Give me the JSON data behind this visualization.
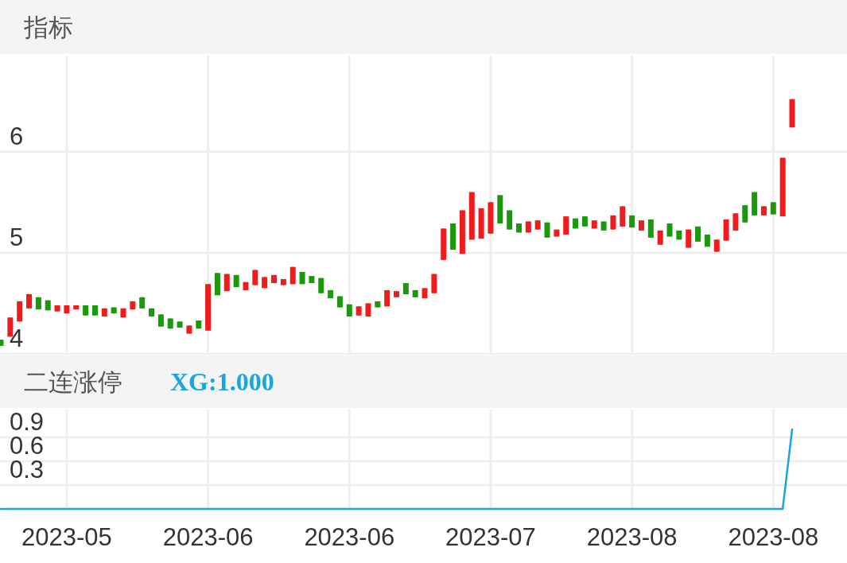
{
  "chart_data": [
    {
      "type": "candlestick",
      "title": "指标",
      "grid": true,
      "tick_labels": "y",
      "ylim": [
        4,
        6.95
      ],
      "yticks": [
        4,
        5,
        6
      ],
      "categories": [
        null,
        null,
        null,
        null,
        null,
        null,
        null,
        "2023-05",
        null,
        null,
        null,
        null,
        null,
        null,
        null,
        null,
        null,
        null,
        null,
        null,
        null,
        null,
        "2023-06",
        null,
        null,
        null,
        null,
        null,
        null,
        null,
        null,
        null,
        null,
        null,
        null,
        null,
        null,
        "2023-06",
        null,
        null,
        null,
        null,
        null,
        null,
        null,
        null,
        null,
        null,
        null,
        null,
        null,
        null,
        "2023-07",
        null,
        null,
        null,
        null,
        null,
        null,
        null,
        null,
        null,
        null,
        null,
        null,
        null,
        null,
        "2023-08",
        null,
        null,
        null,
        null,
        null,
        null,
        null,
        null,
        null,
        null,
        null,
        null,
        null,
        null,
        "2023-08",
        null,
        null
      ],
      "ohlc": [
        [
          4.14,
          4.14,
          4.08,
          4.08
        ],
        [
          4.17,
          4.36,
          4.17,
          4.36
        ],
        [
          4.32,
          4.52,
          4.32,
          4.52
        ],
        [
          4.45,
          4.59,
          4.45,
          4.59
        ],
        [
          4.56,
          4.56,
          4.44,
          4.44
        ],
        [
          4.53,
          4.53,
          4.43,
          4.43
        ],
        [
          4.42,
          4.48,
          4.42,
          4.48
        ],
        [
          4.4,
          4.48,
          4.4,
          4.48
        ],
        [
          4.44,
          4.48,
          4.44,
          4.48
        ],
        [
          4.48,
          4.48,
          4.38,
          4.38
        ],
        [
          4.48,
          4.48,
          4.38,
          4.38
        ],
        [
          4.37,
          4.45,
          4.37,
          4.45
        ],
        [
          4.46,
          4.46,
          4.4,
          4.4
        ],
        [
          4.36,
          4.45,
          4.36,
          4.45
        ],
        [
          4.44,
          4.52,
          4.44,
          4.52
        ],
        [
          4.56,
          4.56,
          4.45,
          4.45
        ],
        [
          4.45,
          4.45,
          4.37,
          4.37
        ],
        [
          4.39,
          4.39,
          4.27,
          4.27
        ],
        [
          4.35,
          4.35,
          4.25,
          4.25
        ],
        [
          4.32,
          4.32,
          4.26,
          4.26
        ],
        [
          4.2,
          4.28,
          4.2,
          4.28
        ],
        [
          4.33,
          4.33,
          4.25,
          4.25
        ],
        [
          4.23,
          4.69,
          4.23,
          4.69
        ],
        [
          4.8,
          4.8,
          4.58,
          4.58
        ],
        [
          4.62,
          4.79,
          4.62,
          4.79
        ],
        [
          4.78,
          4.78,
          4.66,
          4.66
        ],
        [
          4.63,
          4.71,
          4.63,
          4.71
        ],
        [
          4.68,
          4.83,
          4.68,
          4.83
        ],
        [
          4.65,
          4.76,
          4.65,
          4.76
        ],
        [
          4.7,
          4.78,
          4.7,
          4.78
        ],
        [
          4.68,
          4.74,
          4.68,
          4.74
        ],
        [
          4.69,
          4.86,
          4.69,
          4.86
        ],
        [
          4.81,
          4.81,
          4.69,
          4.69
        ],
        [
          4.77,
          4.77,
          4.7,
          4.7
        ],
        [
          4.75,
          4.75,
          4.6,
          4.6
        ],
        [
          4.63,
          4.63,
          4.55,
          4.55
        ],
        [
          4.57,
          4.57,
          4.46,
          4.46
        ],
        [
          4.49,
          4.49,
          4.37,
          4.37
        ],
        [
          4.38,
          4.47,
          4.38,
          4.47
        ],
        [
          4.37,
          4.5,
          4.37,
          4.5
        ],
        [
          4.52,
          4.52,
          4.46,
          4.46
        ],
        [
          4.47,
          4.63,
          4.47,
          4.63
        ],
        [
          4.56,
          4.62,
          4.56,
          4.62
        ],
        [
          4.7,
          4.7,
          4.59,
          4.59
        ],
        [
          4.63,
          4.63,
          4.56,
          4.56
        ],
        [
          4.55,
          4.65,
          4.55,
          4.65
        ],
        [
          4.6,
          4.79,
          4.6,
          4.79
        ],
        [
          4.93,
          5.24,
          4.93,
          5.24
        ],
        [
          5.29,
          5.29,
          5.03,
          5.03
        ],
        [
          4.99,
          5.42,
          4.99,
          5.42
        ],
        [
          5.13,
          5.6,
          5.13,
          5.6
        ],
        [
          5.14,
          5.44,
          5.14,
          5.44
        ],
        [
          5.19,
          5.5,
          5.19,
          5.5
        ],
        [
          5.57,
          5.57,
          5.29,
          5.29
        ],
        [
          5.42,
          5.42,
          5.23,
          5.23
        ],
        [
          5.29,
          5.29,
          5.2,
          5.2
        ],
        [
          5.2,
          5.31,
          5.2,
          5.31
        ],
        [
          5.23,
          5.32,
          5.23,
          5.32
        ],
        [
          5.3,
          5.3,
          5.15,
          5.15
        ],
        [
          5.16,
          5.23,
          5.16,
          5.23
        ],
        [
          5.18,
          5.36,
          5.18,
          5.36
        ],
        [
          5.34,
          5.34,
          5.24,
          5.24
        ],
        [
          5.36,
          5.36,
          5.26,
          5.26
        ],
        [
          5.24,
          5.32,
          5.24,
          5.32
        ],
        [
          5.31,
          5.31,
          5.22,
          5.22
        ],
        [
          5.23,
          5.37,
          5.23,
          5.37
        ],
        [
          5.26,
          5.46,
          5.26,
          5.46
        ],
        [
          5.37,
          5.37,
          5.25,
          5.25
        ],
        [
          5.22,
          5.32,
          5.22,
          5.32
        ],
        [
          5.33,
          5.33,
          5.15,
          5.15
        ],
        [
          5.08,
          5.22,
          5.08,
          5.22
        ],
        [
          5.29,
          5.29,
          5.16,
          5.16
        ],
        [
          5.22,
          5.22,
          5.13,
          5.13
        ],
        [
          5.05,
          5.23,
          5.05,
          5.23
        ],
        [
          5.26,
          5.26,
          5.11,
          5.11
        ],
        [
          5.18,
          5.18,
          5.06,
          5.06
        ],
        [
          5.01,
          5.13,
          5.01,
          5.13
        ],
        [
          5.12,
          5.33,
          5.12,
          5.33
        ],
        [
          5.22,
          5.39,
          5.22,
          5.39
        ],
        [
          5.47,
          5.47,
          5.3,
          5.3
        ],
        [
          5.6,
          5.6,
          5.37,
          5.37
        ],
        [
          5.37,
          5.46,
          5.37,
          5.46
        ],
        [
          5.5,
          5.5,
          5.38,
          5.38
        ],
        [
          5.36,
          5.94,
          5.36,
          5.94
        ],
        [
          6.24,
          6.52,
          6.24,
          6.52
        ]
      ],
      "colors": [
        "#1a9a0a",
        "#f01c1c",
        "#f01c1c",
        "#f01c1c",
        "#1a9a0a",
        "#1a9a0a",
        "#f01c1c",
        "#f01c1c",
        "#f01c1c",
        "#1a9a0a",
        "#1a9a0a",
        "#f01c1c",
        "#1a9a0a",
        "#f01c1c",
        "#f01c1c",
        "#1a9a0a",
        "#1a9a0a",
        "#1a9a0a",
        "#1a9a0a",
        "#1a9a0a",
        "#f01c1c",
        "#1a9a0a",
        "#f01c1c",
        "#1a9a0a",
        "#f01c1c",
        "#1a9a0a",
        "#f01c1c",
        "#f01c1c",
        "#f01c1c",
        "#f01c1c",
        "#f01c1c",
        "#f01c1c",
        "#1a9a0a",
        "#1a9a0a",
        "#1a9a0a",
        "#1a9a0a",
        "#1a9a0a",
        "#1a9a0a",
        "#f01c1c",
        "#f01c1c",
        "#1a9a0a",
        "#f01c1c",
        "#f01c1c",
        "#1a9a0a",
        "#1a9a0a",
        "#f01c1c",
        "#f01c1c",
        "#f01c1c",
        "#1a9a0a",
        "#f01c1c",
        "#f01c1c",
        "#f01c1c",
        "#f01c1c",
        "#1a9a0a",
        "#1a9a0a",
        "#1a9a0a",
        "#f01c1c",
        "#f01c1c",
        "#1a9a0a",
        "#f01c1c",
        "#f01c1c",
        "#1a9a0a",
        "#1a9a0a",
        "#f01c1c",
        "#1a9a0a",
        "#f01c1c",
        "#f01c1c",
        "#1a9a0a",
        "#f01c1c",
        "#1a9a0a",
        "#f01c1c",
        "#1a9a0a",
        "#1a9a0a",
        "#f01c1c",
        "#1a9a0a",
        "#1a9a0a",
        "#f01c1c",
        "#f01c1c",
        "#f01c1c",
        "#1a9a0a",
        "#1a9a0a",
        "#f01c1c",
        "#1a9a0a",
        "#f01c1c",
        "#f01c1c"
      ]
    },
    {
      "type": "line",
      "title": "二连涨停",
      "grid": true,
      "ylim": [
        0,
        1.25
      ],
      "yticks": [
        0.3,
        0.6,
        0.9
      ],
      "categories": [
        null,
        null,
        null,
        null,
        null,
        null,
        null,
        "2023-05",
        null,
        null,
        null,
        null,
        null,
        null,
        null,
        null,
        null,
        null,
        null,
        null,
        null,
        null,
        "2023-06",
        null,
        null,
        null,
        null,
        null,
        null,
        null,
        null,
        null,
        null,
        null,
        null,
        null,
        null,
        "2023-06",
        null,
        null,
        null,
        null,
        null,
        null,
        null,
        null,
        null,
        null,
        null,
        null,
        null,
        null,
        "2023-07",
        null,
        null,
        null,
        null,
        null,
        null,
        null,
        null,
        null,
        null,
        null,
        null,
        null,
        null,
        "2023-08",
        null,
        null,
        null,
        null,
        null,
        null,
        null,
        null,
        null,
        null,
        null,
        null,
        null,
        null,
        "2023-08",
        null,
        null
      ],
      "series": [
        {
          "name": "XG:1.000",
          "color": "#1aa5e0",
          "values": [
            0,
            0,
            0,
            0,
            0,
            0,
            0,
            0,
            0,
            0,
            0,
            0,
            0,
            0,
            0,
            0,
            0,
            0,
            0,
            0,
            0,
            0,
            0,
            0,
            0,
            0,
            0,
            0,
            0,
            0,
            0,
            0,
            0,
            0,
            0,
            0,
            0,
            0,
            0,
            0,
            0,
            0,
            0,
            0,
            0,
            0,
            0,
            0,
            0,
            0,
            0,
            0,
            0,
            0,
            0,
            0,
            0,
            0,
            0,
            0,
            0,
            0,
            0,
            0,
            0,
            0,
            0,
            0,
            0,
            0,
            0,
            0,
            0,
            0,
            0,
            0,
            0,
            0,
            0,
            0,
            0,
            0,
            0,
            0,
            1
          ]
        }
      ]
    }
  ]
}
